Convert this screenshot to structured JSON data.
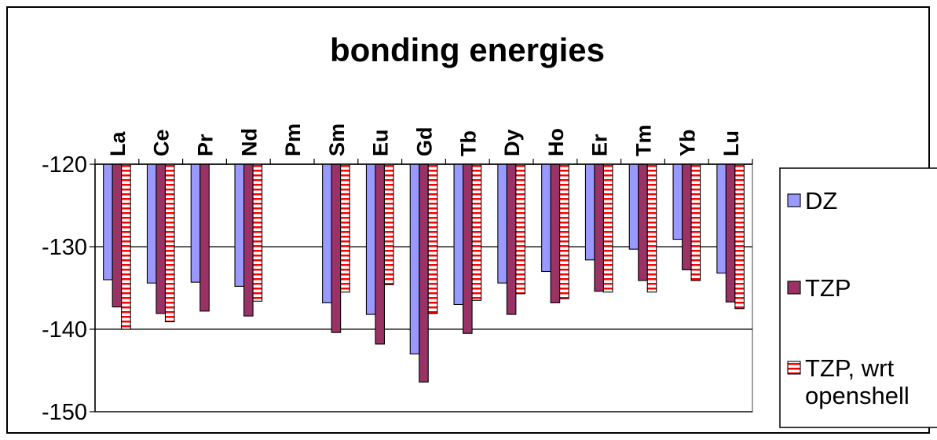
{
  "chart_data": {
    "type": "bar",
    "title": "bonding energies",
    "xlabel": "",
    "ylabel": "",
    "ylim": [
      -150,
      -120
    ],
    "yticks": [
      -120,
      -130,
      -140,
      -150
    ],
    "grid": true,
    "legend_position": "right",
    "categories": [
      "La",
      "Ce",
      "Pr",
      "Nd",
      "Pm",
      "Sm",
      "Eu",
      "Gd",
      "Tb",
      "Dy",
      "Ho",
      "Er",
      "Tm",
      "Yb",
      "Lu"
    ],
    "series": [
      {
        "name": "DZ",
        "color": "#9999ff",
        "pattern": "solid",
        "values": [
          -134.0,
          -134.4,
          -134.3,
          -134.8,
          null,
          -136.8,
          -138.2,
          -143.0,
          -137.0,
          -134.4,
          -133.0,
          -131.6,
          -130.3,
          -129.1,
          -133.2
        ]
      },
      {
        "name": "TZP",
        "color": "#993366",
        "pattern": "solid",
        "values": [
          -137.3,
          -138.1,
          -137.8,
          -138.4,
          null,
          -140.4,
          -141.8,
          -146.4,
          -140.5,
          -138.2,
          -136.8,
          -135.4,
          -134.1,
          -132.8,
          -136.7
        ]
      },
      {
        "name": "TZP, wrt openshell",
        "color": "#ff0000",
        "pattern": "horizontal-stripes",
        "values": [
          -140.0,
          -139.1,
          null,
          -136.6,
          null,
          -135.5,
          -134.6,
          -138.1,
          -136.5,
          -135.7,
          -136.3,
          -135.5,
          -135.5,
          -134.1,
          -137.5
        ]
      }
    ]
  }
}
